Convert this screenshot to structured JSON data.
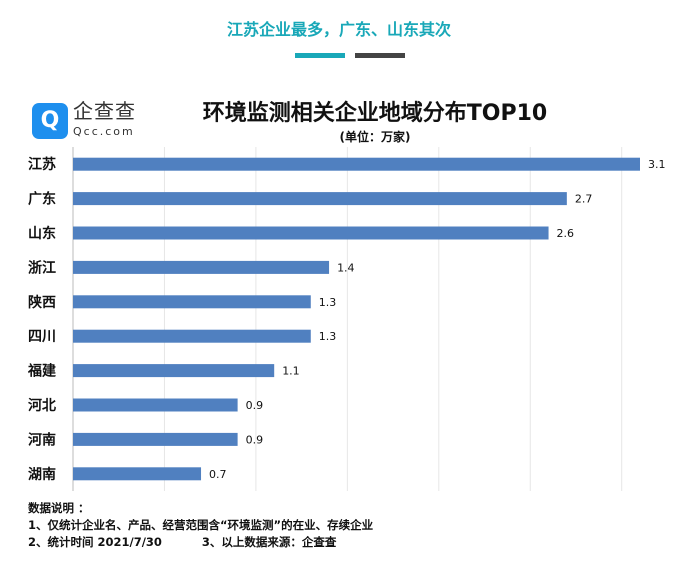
{
  "headline": "江苏企业最多，广东、山东其次",
  "logo": {
    "cn": "企查查",
    "en": "Qcc.com"
  },
  "chart_data": {
    "type": "bar",
    "orientation": "horizontal",
    "title": "环境监测相关企业地域分布TOP10",
    "subtitle": "(单位：万家)",
    "categories": [
      "江苏",
      "广东",
      "山东",
      "浙江",
      "陕西",
      "四川",
      "福建",
      "河北",
      "河南",
      "湖南"
    ],
    "values": [
      3.1,
      2.7,
      2.6,
      1.4,
      1.3,
      1.3,
      1.1,
      0.9,
      0.9,
      0.7
    ],
    "xlim": [
      0,
      3.1
    ],
    "grid": true,
    "bar_color": "#5080c0"
  },
  "notes": {
    "heading": "数据说明 ：",
    "line1": "1、仅统计企业名、产品、经营范围含“环境监测”的在业、存续企业",
    "line2a": "2、统计时间 2021/7/30",
    "line2b": "3、以上数据来源：企查查"
  }
}
